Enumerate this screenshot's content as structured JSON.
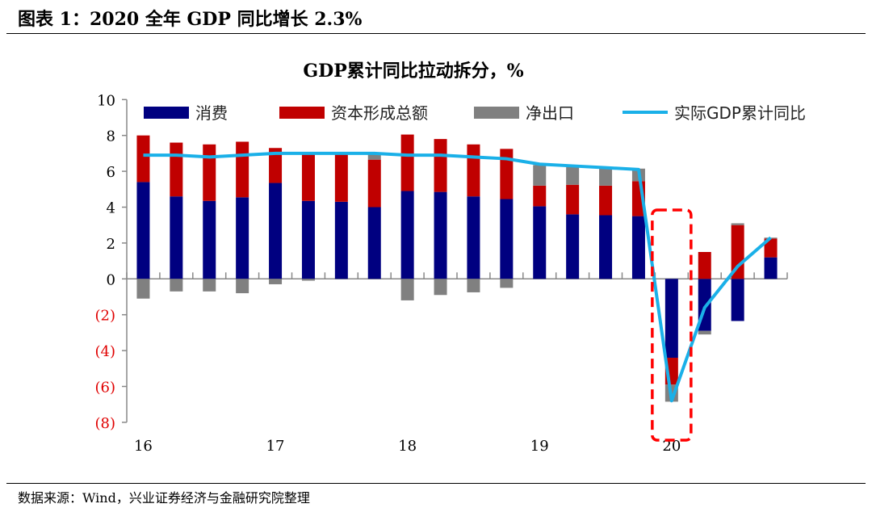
{
  "figure_title": "图表 1：2020 全年 GDP 同比增长 2.3%",
  "source": "数据来源：Wind，兴业证券经济与金融研究院整理",
  "chart_data": {
    "type": "bar",
    "stacked": true,
    "title": "GDP累计同比拉动拆分，%",
    "xlabel": "",
    "ylabel": "",
    "ylim": [
      -8,
      10
    ],
    "yticks": [
      10,
      8,
      6,
      4,
      2,
      0,
      -2,
      -4,
      -6,
      -8
    ],
    "ytick_labels": [
      "10",
      "8",
      "6",
      "4",
      "2",
      "0",
      "(2)",
      "(4)",
      "(6)",
      "(8)"
    ],
    "negative_tick_color": "#e00000",
    "categories": [
      "2016Q1",
      "2016Q2",
      "2016Q3",
      "2016Q4",
      "2017Q1",
      "2017Q2",
      "2017Q3",
      "2017Q4",
      "2018Q1",
      "2018Q2",
      "2018Q3",
      "2018Q4",
      "2019Q1",
      "2019Q2",
      "2019Q3",
      "2019Q4",
      "2020Q1",
      "2020Q2",
      "2020Q3",
      "2020Q4"
    ],
    "xtick_labels": [
      {
        "label": "16",
        "category": "2016Q1"
      },
      {
        "label": "17",
        "category": "2017Q1"
      },
      {
        "label": "18",
        "category": "2018Q1"
      },
      {
        "label": "19",
        "category": "2019Q1"
      },
      {
        "label": "20",
        "category": "2020Q1"
      }
    ],
    "series": [
      {
        "name": "消费",
        "type": "bar",
        "color": "#000080",
        "values": [
          5.4,
          4.6,
          4.35,
          4.55,
          5.35,
          4.35,
          4.3,
          4.0,
          4.9,
          4.85,
          4.6,
          4.45,
          4.05,
          3.6,
          3.55,
          3.5,
          -4.4,
          -2.9,
          -2.35,
          1.2
        ]
      },
      {
        "name": "资本形成总额",
        "type": "bar",
        "color": "#c00000",
        "values": [
          2.6,
          3.0,
          3.15,
          3.1,
          1.95,
          2.65,
          2.7,
          2.65,
          3.15,
          2.95,
          2.9,
          2.8,
          1.15,
          1.65,
          1.65,
          1.95,
          -1.5,
          1.5,
          3.0,
          1.05
        ]
      },
      {
        "name": "净出口",
        "type": "bar",
        "color": "#808080",
        "values": [
          -1.1,
          -0.7,
          -0.7,
          -0.8,
          -0.3,
          -0.1,
          0.0,
          0.3,
          -1.2,
          -0.9,
          -0.75,
          -0.5,
          1.15,
          1.0,
          0.95,
          0.7,
          -0.95,
          -0.2,
          0.1,
          0.05
        ]
      },
      {
        "name": "实际GDP累计同比",
        "type": "line",
        "color": "#1ab0e8",
        "values": [
          6.9,
          6.9,
          6.8,
          6.9,
          7.0,
          7.0,
          7.0,
          7.0,
          6.9,
          6.9,
          6.8,
          6.7,
          6.4,
          6.3,
          6.2,
          6.1,
          -6.8,
          -1.6,
          0.7,
          2.3
        ]
      }
    ],
    "highlight": {
      "category": "2020Q1",
      "style": "red dashed box",
      "color": "#ff0000"
    },
    "legend_position": "top",
    "grid": false
  }
}
